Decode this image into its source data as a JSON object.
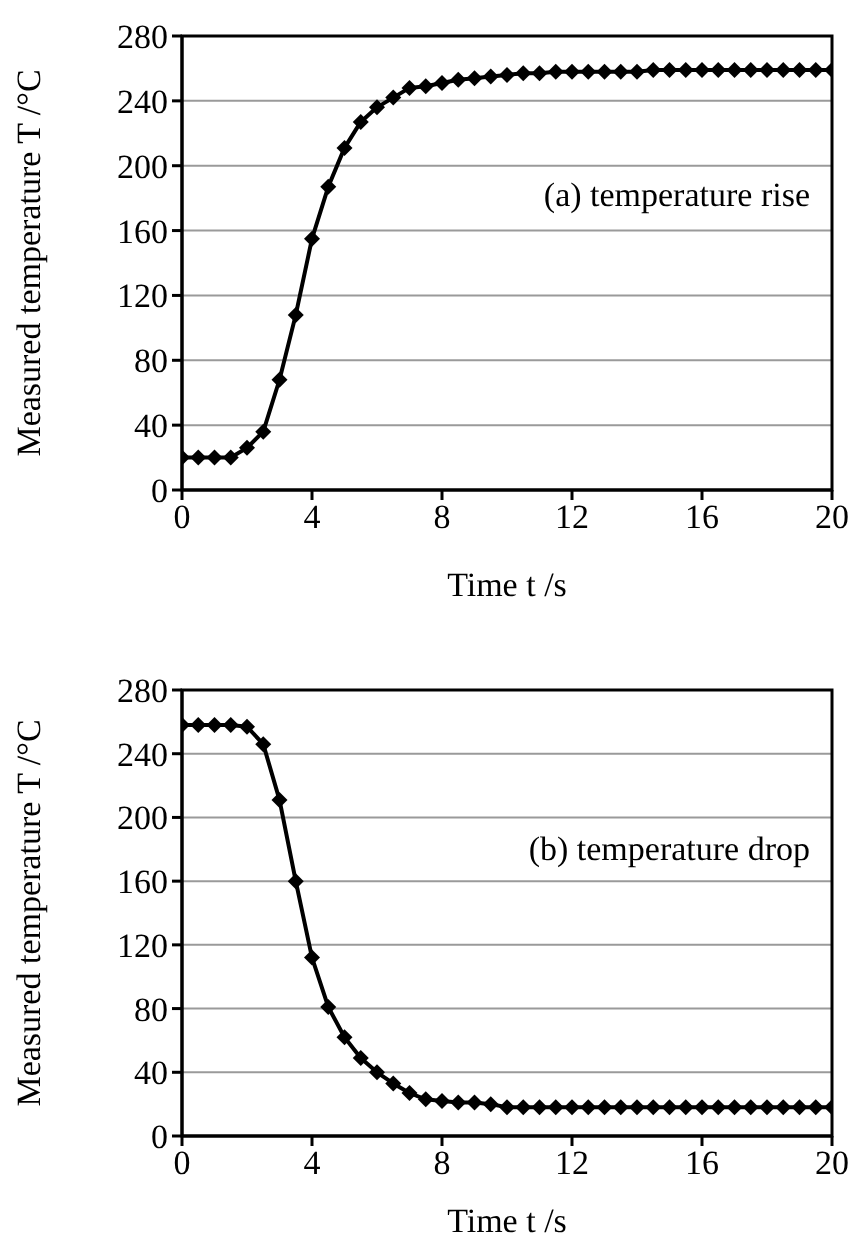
{
  "chart_data": [
    {
      "type": "line",
      "xlabel": "Time t /s",
      "ylabel": "Measured temperature T /°C",
      "annotations": [
        "(a) temperature rise"
      ],
      "x": [
        0,
        0.5,
        1,
        1.5,
        2,
        2.5,
        3,
        3.5,
        4,
        4.5,
        5,
        5.5,
        6,
        6.5,
        7,
        7.5,
        8,
        8.5,
        9,
        9.5,
        10,
        10.5,
        11,
        11.5,
        12,
        12.5,
        13,
        13.5,
        14,
        14.5,
        15,
        15.5,
        16,
        16.5,
        17,
        17.5,
        18,
        18.5,
        19,
        19.5,
        20
      ],
      "series": [
        {
          "color": "#000000",
          "values": [
            20,
            20,
            20,
            20,
            26,
            36,
            68,
            108,
            155,
            187,
            211,
            227,
            236,
            242,
            248,
            249,
            251,
            253,
            254,
            255,
            256,
            257,
            257,
            258,
            258,
            258,
            258,
            258,
            258,
            259,
            259,
            259,
            259,
            259,
            259,
            259,
            259,
            259,
            259,
            259,
            259
          ]
        }
      ],
      "xlim": [
        0,
        20
      ],
      "xticks": [
        0,
        4,
        8,
        12,
        16,
        20
      ],
      "ylim": [
        0,
        280
      ],
      "yticks": [
        0,
        40,
        80,
        120,
        160,
        200,
        240,
        280
      ],
      "grid": "y",
      "marker": "diamond",
      "line_style": "solid"
    },
    {
      "type": "line",
      "xlabel": "Time t /s",
      "ylabel": "Measured temperature T /°C",
      "annotations": [
        "(b) temperature drop"
      ],
      "x": [
        0,
        0.5,
        1,
        1.5,
        2,
        2.5,
        3,
        3.5,
        4,
        4.5,
        5,
        5.5,
        6,
        6.5,
        7,
        7.5,
        8,
        8.5,
        9,
        9.5,
        10,
        10.5,
        11,
        11.5,
        12,
        12.5,
        13,
        13.5,
        14,
        14.5,
        15,
        15.5,
        16,
        16.5,
        17,
        17.5,
        18,
        18.5,
        19,
        19.5,
        20
      ],
      "series": [
        {
          "color": "#000000",
          "values": [
            258,
            258,
            258,
            258,
            257,
            246,
            211,
            160,
            112,
            81,
            62,
            49,
            40,
            33,
            27,
            23,
            22,
            21,
            21,
            20,
            18,
            18,
            18,
            18,
            18,
            18,
            18,
            18,
            18,
            18,
            18,
            18,
            18,
            18,
            18,
            18,
            18,
            18,
            18,
            18,
            18
          ]
        }
      ],
      "xlim": [
        0,
        20
      ],
      "xticks": [
        0,
        4,
        8,
        12,
        16,
        20
      ],
      "ylim": [
        0,
        280
      ],
      "yticks": [
        0,
        40,
        80,
        120,
        160,
        200,
        240,
        280
      ],
      "grid": "y",
      "marker": "diamond",
      "line_style": "solid"
    }
  ]
}
